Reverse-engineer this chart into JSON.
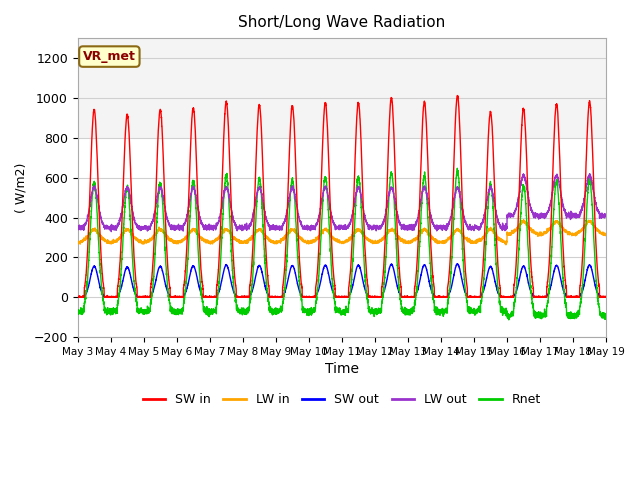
{
  "title": "Short/Long Wave Radiation",
  "xlabel": "Time",
  "ylabel": "( W/m2)",
  "ylim": [
    -200,
    1300
  ],
  "yticks": [
    -200,
    0,
    200,
    400,
    600,
    800,
    1000,
    1200
  ],
  "num_days": 16,
  "points_per_day": 288,
  "legend_labels": [
    "SW in",
    "LW in",
    "SW out",
    "LW out",
    "Rnet"
  ],
  "colors": {
    "SW_in": "#FF0000",
    "LW_in": "#FFA500",
    "SW_out": "#0000FF",
    "LW_out": "#9933CC",
    "Rnet": "#00CC00"
  },
  "annotation_text": "VR_met",
  "annotation_color": "#8B0000",
  "annotation_bg": "#FFFFCC",
  "annotation_border": "#8B6914",
  "plot_bg_color": "#FFFFFF",
  "fig_bg_color": "#FFFFFF",
  "grid_color": "#D0D0D0",
  "upper_band_color": "#EBEBEB",
  "sw_in_peaks": [
    940,
    915,
    940,
    950,
    980,
    965,
    960,
    975,
    975,
    1000,
    980,
    1010,
    930,
    945,
    970,
    980
  ],
  "lw_in_base": 295,
  "lw_in_amp": 20,
  "lw_out_base": 350,
  "lw_out_amp": 55,
  "sw_out_ratio": 0.165,
  "rnet_night": -90,
  "rnet_peak": 530
}
